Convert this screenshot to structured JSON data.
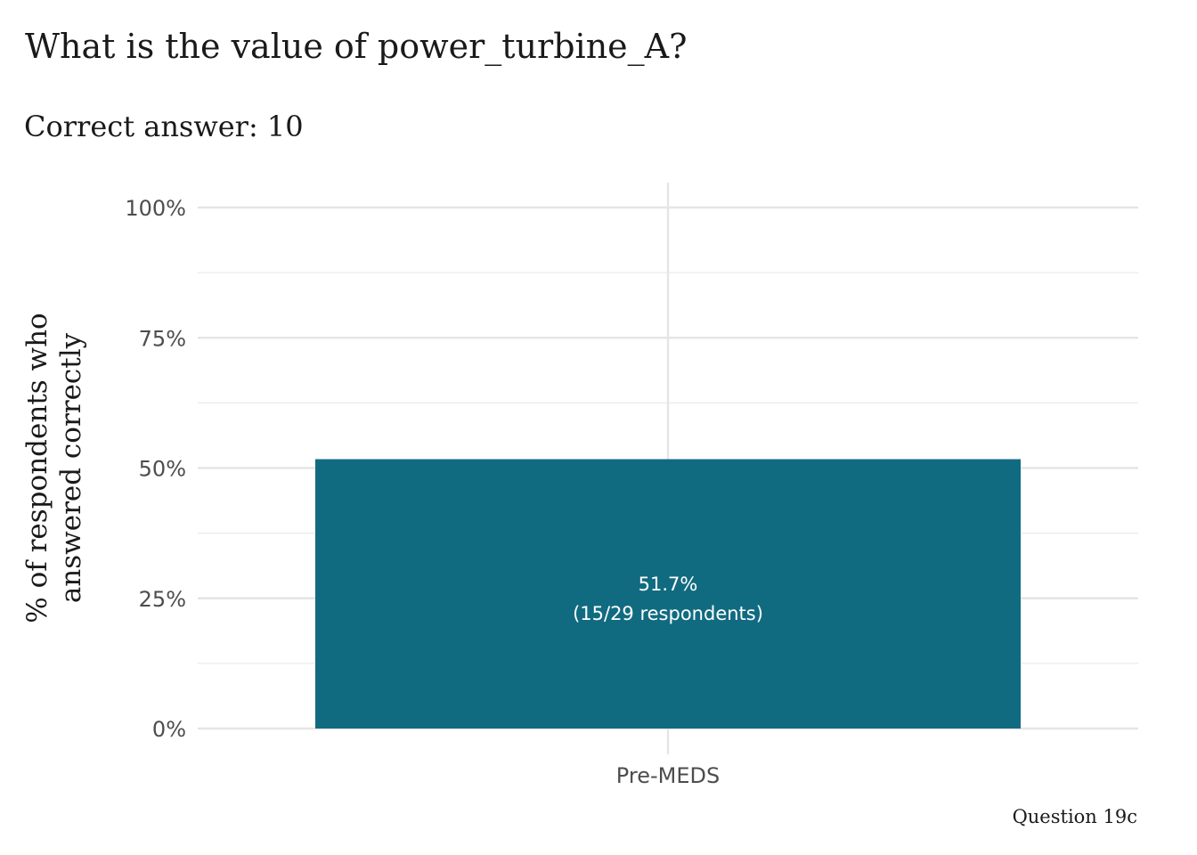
{
  "chart_data": {
    "type": "bar",
    "title": "What is the value of power_turbine_A?",
    "subtitle": "Correct answer: 10",
    "caption": "Question 19c",
    "ylabel": [
      "% of respondents who",
      "answered correctly"
    ],
    "xlabel": "",
    "categories": [
      "Pre-MEDS"
    ],
    "values": [
      51.7
    ],
    "bar_labels": [
      [
        "51.7%",
        "(15/29 respondents)"
      ]
    ],
    "ylim": [
      0,
      100
    ],
    "yticks": [
      0,
      25,
      50,
      75,
      100
    ],
    "ytick_labels": [
      "0%",
      "25%",
      "50%",
      "75%",
      "100%"
    ],
    "grid": true,
    "legend": "none",
    "bar_color": "#116b80"
  }
}
